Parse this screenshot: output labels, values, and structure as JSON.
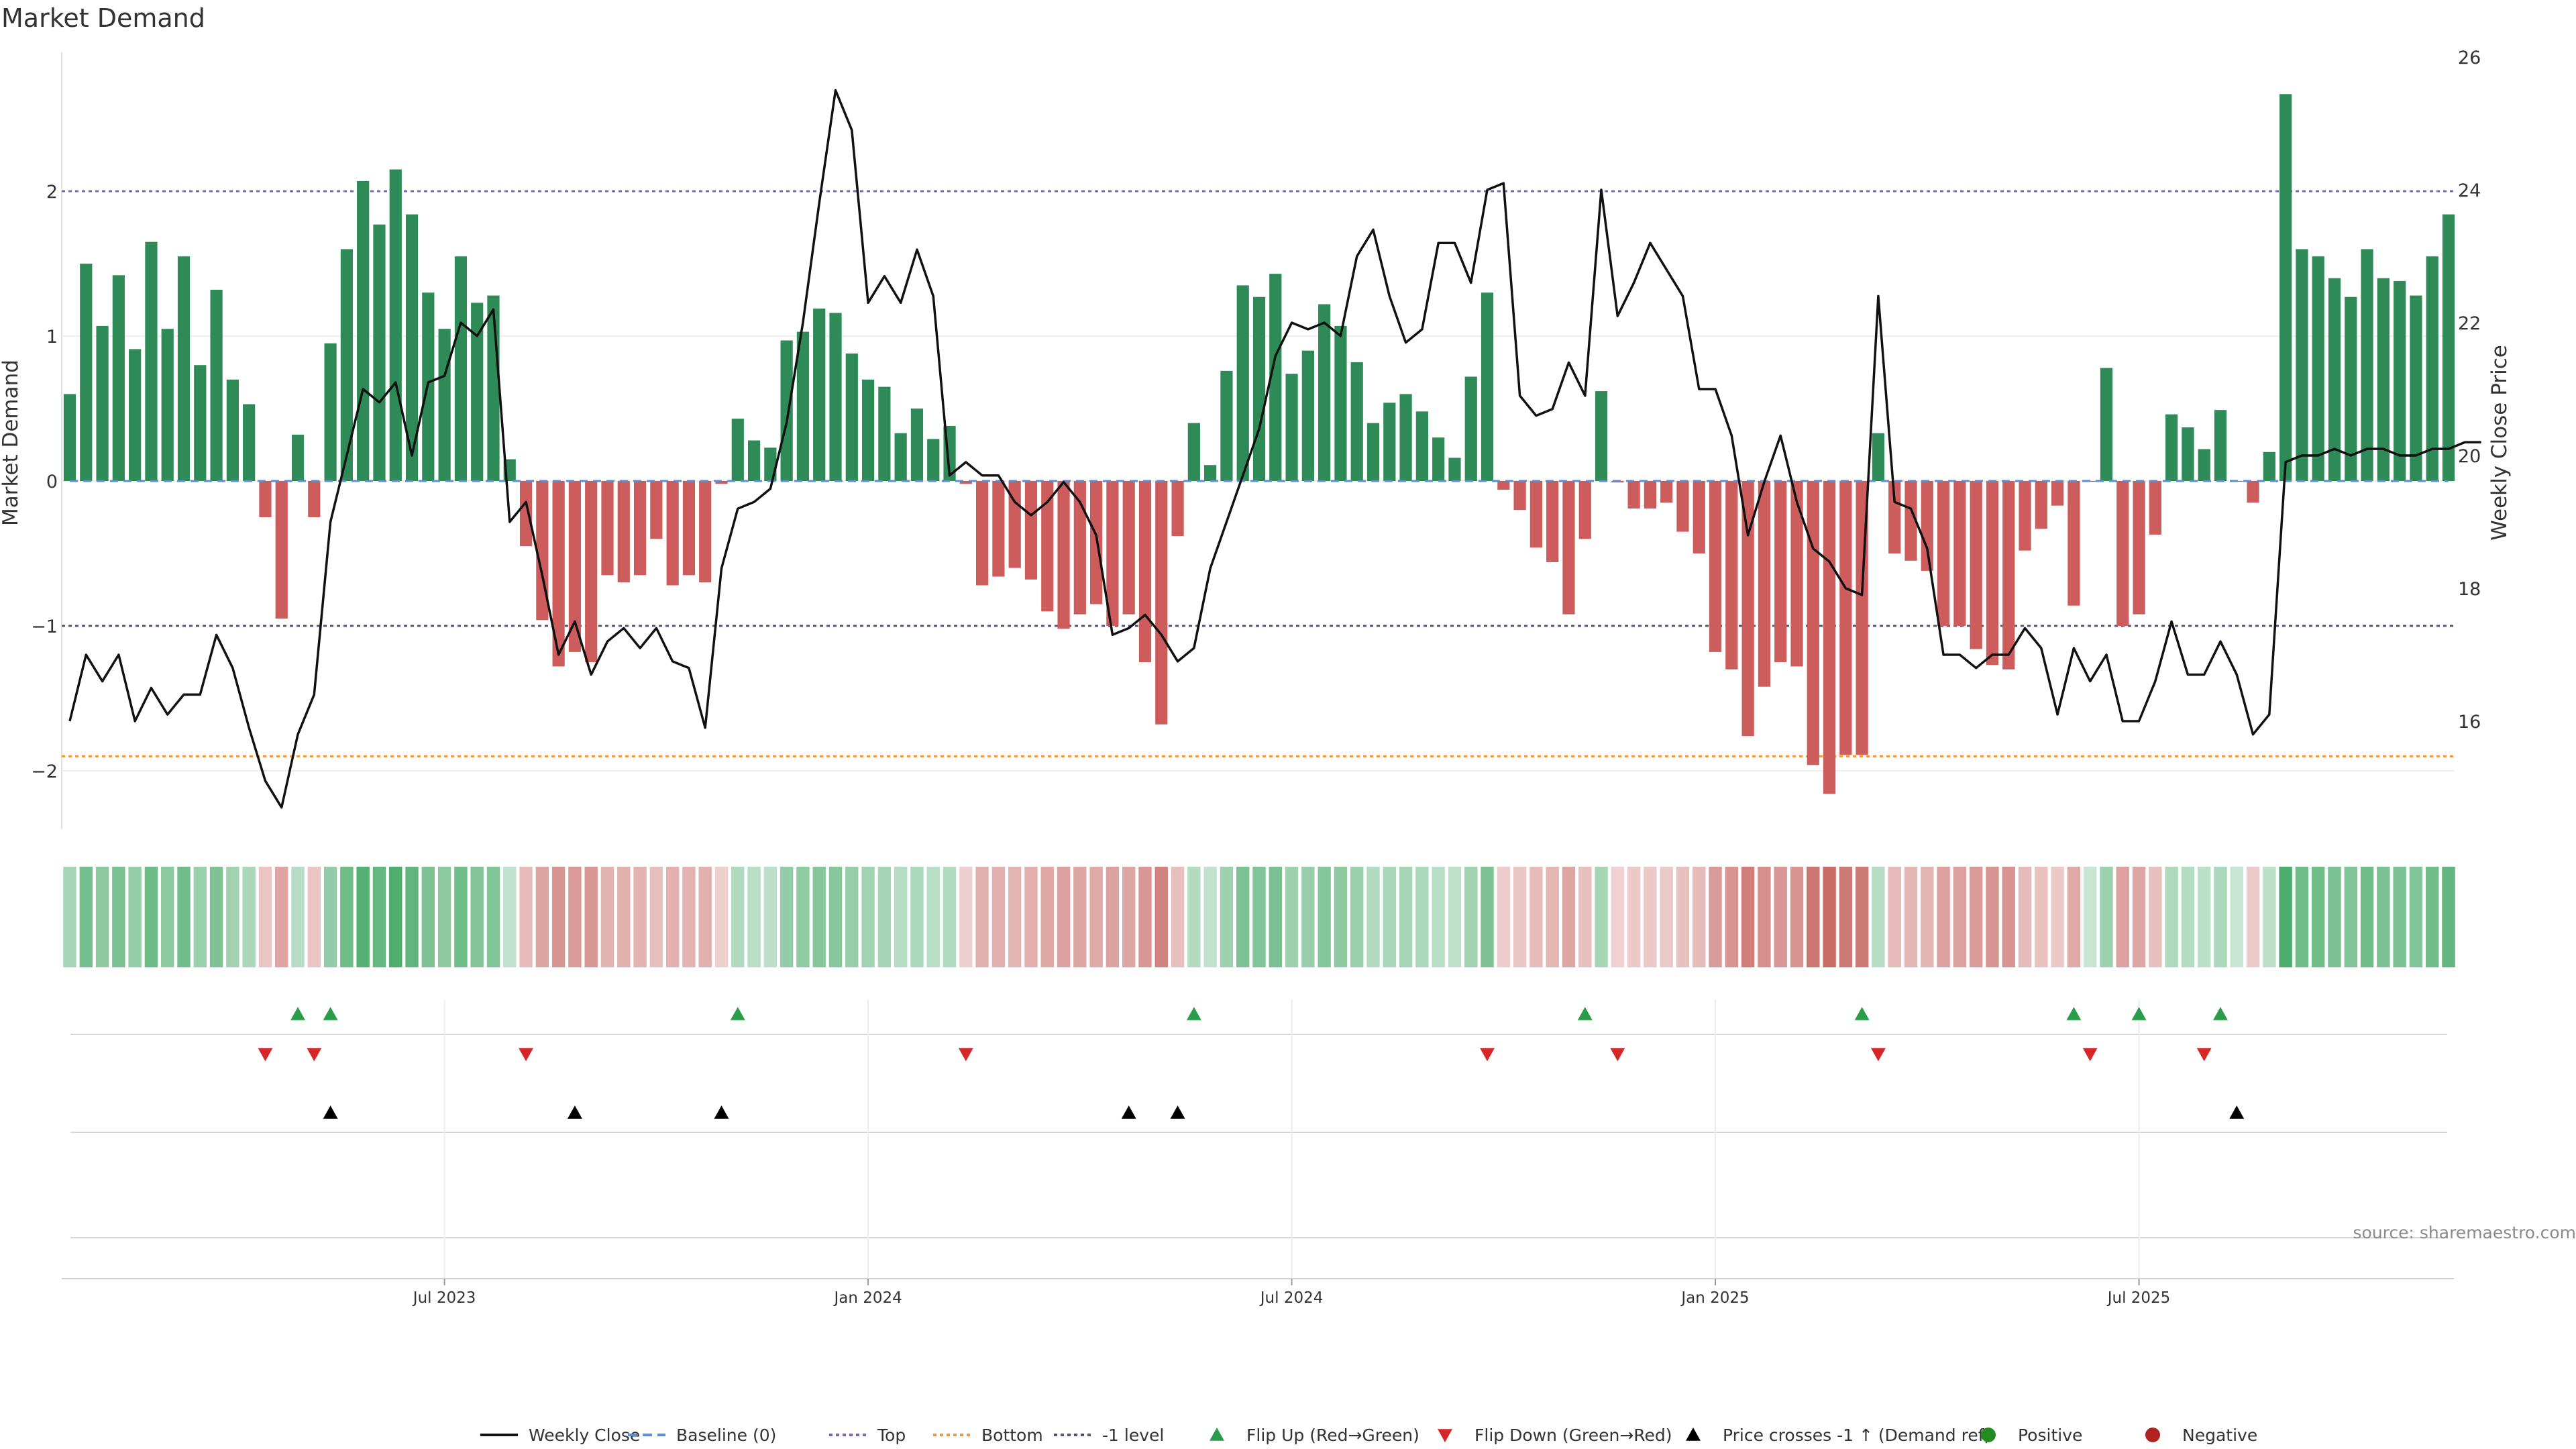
{
  "chart_data": {
    "type": "bar",
    "title": "Market Demand",
    "ylabel": "Market Demand",
    "y2label": "Weekly Close Price",
    "ylim": [
      -2.45,
      3.0
    ],
    "y2lim": [
      14.0,
      26.0
    ],
    "yticks": [
      "−2",
      "−1",
      "0",
      "1",
      "2"
    ],
    "yticks_values": [
      -2,
      -1,
      0,
      1,
      2
    ],
    "y2ticks": [
      "16",
      "18",
      "20",
      "22",
      "24",
      "26"
    ],
    "y2ticks_values": [
      16,
      18,
      20,
      22,
      24,
      26
    ],
    "date_labels": [
      "Jul 2023",
      "Jan 2024",
      "Jul 2024",
      "Jan 2025",
      "Jul 2025"
    ],
    "date_label_weeks": [
      23,
      49,
      75,
      101,
      127
    ],
    "reference_lines": [
      {
        "name": "Top",
        "value": 2.0,
        "color": "#7b68a6"
      },
      {
        "name": "-1 level",
        "value": -1.0,
        "color": "#555577"
      },
      {
        "name": "Bottom",
        "value": -1.9,
        "color": "#f0963c"
      }
    ],
    "demand": [
      0.6,
      1.5,
      1.07,
      1.42,
      0.91,
      1.65,
      1.05,
      1.55,
      0.8,
      1.32,
      0.7,
      0.53,
      -0.25,
      -0.95,
      0.32,
      -0.25,
      0.95,
      1.6,
      2.07,
      1.77,
      2.15,
      1.84,
      1.3,
      1.05,
      1.55,
      1.23,
      1.28,
      0.15,
      -0.45,
      -0.96,
      -1.28,
      -1.18,
      -1.25,
      -0.65,
      -0.7,
      -0.65,
      -0.4,
      -0.72,
      -0.65,
      -0.7,
      -0.02,
      0.43,
      0.28,
      0.23,
      0.97,
      1.03,
      1.19,
      1.16,
      0.88,
      0.7,
      0.65,
      0.33,
      0.5,
      0.29,
      0.38,
      -0.02,
      -0.72,
      -0.66,
      -0.6,
      -0.68,
      -0.9,
      -1.02,
      -0.92,
      -0.85,
      -1.0,
      -0.92,
      -1.25,
      -1.68,
      -0.38,
      0.4,
      0.11,
      0.76,
      1.35,
      1.27,
      1.43,
      0.74,
      0.9,
      1.22,
      1.07,
      0.82,
      0.4,
      0.54,
      0.6,
      0.48,
      0.3,
      0.16,
      0.72,
      1.3,
      -0.06,
      -0.2,
      -0.46,
      -0.56,
      -0.92,
      -0.4,
      0.62,
      -0.01,
      -0.19,
      -0.19,
      -0.15,
      -0.35,
      -0.5,
      -1.18,
      -1.3,
      -1.76,
      -1.42,
      -1.25,
      -1.28,
      -1.96,
      -2.16,
      -1.89,
      -1.89,
      0.33,
      -0.5,
      -0.55,
      -0.62,
      -1.0,
      -1.0,
      -1.16,
      -1.27,
      -1.3,
      -0.48,
      -0.33,
      -0.17,
      -0.86,
      0.0,
      0.78,
      -1.0,
      -0.92,
      -0.37,
      0.46,
      0.37,
      0.22,
      0.49,
      0.0,
      -0.15,
      0.2,
      2.67,
      1.6,
      1.55,
      1.4,
      1.27,
      1.6,
      1.4,
      1.38,
      1.28,
      1.55,
      1.84
    ],
    "close": [
      16.0,
      17.0,
      16.6,
      17.0,
      16.0,
      16.5,
      16.1,
      16.4,
      16.4,
      17.3,
      16.8,
      15.9,
      15.1,
      14.7,
      15.8,
      16.4,
      19.0,
      20.0,
      21.0,
      20.8,
      21.1,
      20.0,
      21.1,
      21.2,
      22.0,
      21.8,
      22.2,
      19.0,
      19.3,
      18.2,
      17.0,
      17.5,
      16.7,
      17.2,
      17.4,
      17.1,
      17.4,
      16.9,
      16.8,
      15.9,
      18.3,
      19.2,
      19.3,
      19.5,
      20.5,
      22.0,
      23.8,
      25.5,
      24.9,
      22.3,
      22.7,
      22.3,
      23.1,
      22.4,
      19.7,
      19.9,
      19.7,
      19.7,
      19.3,
      19.1,
      19.3,
      19.6,
      19.3,
      18.8,
      17.3,
      17.4,
      17.6,
      17.3,
      16.9,
      17.1,
      18.3,
      19.0,
      19.7,
      20.4,
      21.5,
      22.0,
      21.9,
      22.0,
      21.8,
      23.0,
      23.4,
      22.4,
      21.7,
      21.9,
      23.2,
      23.2,
      22.6,
      24.0,
      24.1,
      20.9,
      20.6,
      20.7,
      21.4,
      20.9,
      24.0,
      22.1,
      22.6,
      23.2,
      22.8,
      22.4,
      21.0,
      21.0,
      20.3,
      18.8,
      19.6,
      20.3,
      19.3,
      18.6,
      18.4,
      18.0,
      17.9,
      22.4,
      19.3,
      19.2,
      18.6,
      17.0,
      17.0,
      16.8,
      17.0,
      17.0,
      17.4,
      17.1,
      16.1,
      17.1,
      16.6,
      17.0,
      16.0,
      16.0,
      16.6,
      17.5,
      16.7,
      16.7,
      17.2,
      16.7,
      15.8,
      16.1,
      19.9,
      20.0,
      20.0,
      20.1,
      20.0,
      20.1,
      20.1,
      20.0,
      20.0,
      20.1,
      20.1,
      20.2,
      20.2
    ],
    "flip_up_weeks": [
      14,
      16,
      41,
      69,
      93,
      110,
      123,
      127,
      132
    ],
    "flip_down_weeks": [
      12,
      15,
      28,
      55,
      87,
      95,
      111,
      124,
      131
    ],
    "price_cross_weeks": [
      16,
      31,
      40,
      65,
      68,
      133
    ],
    "x_start": "2023-02 (weekly)"
  },
  "colors": {
    "positive": "#2e8b57",
    "negative": "#cd5c5c",
    "close_line": "#111111",
    "baseline": "#5a8fd6",
    "flip_up": "#2a9d4a",
    "flip_down": "#d62728",
    "price_cross": "#000000",
    "legend_positive": "#228b22",
    "legend_negative": "#b22222"
  },
  "legend": [
    {
      "label": "Weekly Close",
      "symbol": "line"
    },
    {
      "label": "Baseline (0)",
      "symbol": "dash-blue"
    },
    {
      "label": "Top",
      "symbol": "dot-purple"
    },
    {
      "label": "Bottom",
      "symbol": "dot-orange"
    },
    {
      "label": "-1 level",
      "symbol": "dot-grey"
    },
    {
      "label": "Flip Up (Red→Green)",
      "symbol": "tri-up-green"
    },
    {
      "label": "Flip Down (Green→Red)",
      "symbol": "tri-down-red"
    },
    {
      "label": "Price crosses -1 ↑ (Demand ref)",
      "symbol": "tri-up-black"
    },
    {
      "label": "Positive",
      "symbol": "circle-green"
    },
    {
      "label": "Negative",
      "symbol": "circle-red"
    }
  ],
  "source": "source: sharemaestro.com"
}
